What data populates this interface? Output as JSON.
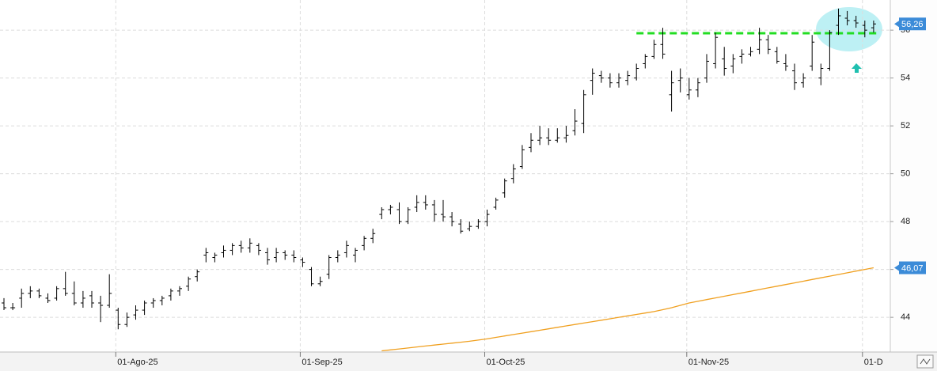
{
  "chart_data": {
    "type": "ohlc",
    "categories": [
      null,
      null,
      null,
      null,
      null,
      null,
      null,
      null,
      null,
      null,
      null,
      null,
      null,
      "01-Ago-25",
      null,
      null,
      null,
      null,
      null,
      null,
      null,
      null,
      null,
      null,
      null,
      null,
      null,
      null,
      null,
      null,
      null,
      null,
      null,
      null,
      "01-Sep-25",
      null,
      null,
      null,
      null,
      null,
      null,
      null,
      null,
      null,
      null,
      null,
      null,
      null,
      null,
      null,
      null,
      null,
      null,
      null,
      null,
      "01-Oct-25",
      null,
      null,
      null,
      null,
      null,
      null,
      null,
      null,
      null,
      null,
      null,
      null,
      null,
      null,
      null,
      null,
      null,
      null,
      null,
      null,
      null,
      null,
      "01-Nov-25",
      null,
      null,
      null,
      null,
      null,
      null,
      null,
      null,
      null,
      null,
      null,
      null,
      null,
      null,
      null,
      null,
      null,
      null,
      null,
      "01-D",
      null
    ],
    "open": [
      44.6,
      44.4,
      44.8,
      45.0,
      45.1,
      44.8,
      44.8,
      45.2,
      45.0,
      44.6,
      44.9,
      44.6,
      44.5,
      44.3,
      43.7,
      44.1,
      44.3,
      44.6,
      44.7,
      44.9,
      45.1,
      45.3,
      45.7,
      46.6,
      46.5,
      46.7,
      46.8,
      47.0,
      46.9,
      47.0,
      46.7,
      46.5,
      46.7,
      46.6,
      46.4,
      46.0,
      45.4,
      45.8,
      46.5,
      46.7,
      46.6,
      47.0,
      47.3,
      48.3,
      48.5,
      48.5,
      48.0,
      48.6,
      48.8,
      48.7,
      48.3,
      48.2,
      47.9,
      47.7,
      47.8,
      48.0,
      48.6,
      49.2,
      49.8,
      50.3,
      51.1,
      51.4,
      51.5,
      51.4,
      51.5,
      51.8,
      52.1,
      53.9,
      54.1,
      54.0,
      53.8,
      53.9,
      54.0,
      54.6,
      54.9,
      55.4,
      53.3,
      53.9,
      53.3,
      53.5,
      54.0,
      54.6,
      54.8,
      54.5,
      54.9,
      55.0,
      55.2,
      55.6,
      55.1,
      54.6,
      54.3,
      53.8,
      54.5,
      54.0,
      54.4,
      56.2,
      56.5,
      56.4,
      56.2,
      56.1
    ],
    "high": [
      44.8,
      44.6,
      45.2,
      45.3,
      45.2,
      45.0,
      45.3,
      45.9,
      45.5,
      45.1,
      45.1,
      44.9,
      45.8,
      44.4,
      44.2,
      44.5,
      44.7,
      44.8,
      44.9,
      45.2,
      45.3,
      45.7,
      46.0,
      46.9,
      46.7,
      47.0,
      47.1,
      47.2,
      47.3,
      47.1,
      46.9,
      46.9,
      46.8,
      46.8,
      46.5,
      46.1,
      45.7,
      46.6,
      46.8,
      47.2,
      46.9,
      47.4,
      47.7,
      48.6,
      48.7,
      48.8,
      48.6,
      49.1,
      49.1,
      48.9,
      48.9,
      48.4,
      48.1,
      48.0,
      48.1,
      48.5,
      49.0,
      49.8,
      50.4,
      51.2,
      51.7,
      52.0,
      51.9,
      51.9,
      52.0,
      52.7,
      53.5,
      54.4,
      54.3,
      54.2,
      54.2,
      54.3,
      54.6,
      55.0,
      55.6,
      56.1,
      54.3,
      54.4,
      54.0,
      54.0,
      55.0,
      55.9,
      55.3,
      55.0,
      55.2,
      55.3,
      56.1,
      55.8,
      55.3,
      55.0,
      54.6,
      54.2,
      55.8,
      54.6,
      56.0,
      56.9,
      56.8,
      56.6,
      56.4,
      56.4
    ],
    "low": [
      44.3,
      44.3,
      44.4,
      44.8,
      44.8,
      44.6,
      44.7,
      44.9,
      44.5,
      44.4,
      44.4,
      43.8,
      44.4,
      43.5,
      43.6,
      43.9,
      44.1,
      44.4,
      44.5,
      44.7,
      44.9,
      45.1,
      45.5,
      46.3,
      46.3,
      46.5,
      46.6,
      46.7,
      46.7,
      46.6,
      46.2,
      46.3,
      46.4,
      46.3,
      46.1,
      45.3,
      45.3,
      45.6,
      46.3,
      46.5,
      46.3,
      46.8,
      47.1,
      48.1,
      48.3,
      47.9,
      47.9,
      48.4,
      48.5,
      48.0,
      48.0,
      47.8,
      47.5,
      47.6,
      47.7,
      47.8,
      48.5,
      49.0,
      49.6,
      50.2,
      50.9,
      51.2,
      51.2,
      51.3,
      51.3,
      51.6,
      51.7,
      53.3,
      53.8,
      53.6,
      53.6,
      53.7,
      53.9,
      54.4,
      54.8,
      54.8,
      52.6,
      53.4,
      53.1,
      53.2,
      53.8,
      54.4,
      54.1,
      54.2,
      54.6,
      54.9,
      55.0,
      55.0,
      54.6,
      54.3,
      53.5,
      53.6,
      54.3,
      53.7,
      54.3,
      55.8,
      56.2,
      56.1,
      55.7,
      55.9
    ],
    "close": [
      44.4,
      44.4,
      45.0,
      45.1,
      44.9,
      44.7,
      45.2,
      45.0,
      44.6,
      44.8,
      44.6,
      44.5,
      45.0,
      43.7,
      44.0,
      44.3,
      44.6,
      44.7,
      44.8,
      45.1,
      45.2,
      45.6,
      45.9,
      46.7,
      46.6,
      46.8,
      47.0,
      46.9,
      47.1,
      46.8,
      46.4,
      46.7,
      46.6,
      46.5,
      46.3,
      45.4,
      45.5,
      46.5,
      46.6,
      47.0,
      46.8,
      47.3,
      47.5,
      48.5,
      48.6,
      48.0,
      48.5,
      48.8,
      48.7,
      48.3,
      48.2,
      48.0,
      47.6,
      47.8,
      48.0,
      48.3,
      48.9,
      49.7,
      50.2,
      51.0,
      51.4,
      51.5,
      51.4,
      51.5,
      51.6,
      52.2,
      53.3,
      54.2,
      54.0,
      53.8,
      54.0,
      54.1,
      54.4,
      54.9,
      55.4,
      55.0,
      53.8,
      54.0,
      53.5,
      53.8,
      54.7,
      55.7,
      54.4,
      54.8,
      55.0,
      55.1,
      55.6,
      55.2,
      54.7,
      54.5,
      53.8,
      54.0,
      55.5,
      54.4,
      55.9,
      56.6,
      56.4,
      56.3,
      56.0,
      56.26
    ],
    "color": "#000000",
    "moving_average": {
      "color": "#f0a020",
      "values": [
        null,
        null,
        null,
        null,
        null,
        null,
        null,
        null,
        null,
        null,
        null,
        null,
        null,
        null,
        null,
        null,
        null,
        null,
        null,
        null,
        null,
        null,
        null,
        null,
        null,
        null,
        null,
        null,
        null,
        null,
        null,
        null,
        null,
        null,
        null,
        null,
        null,
        null,
        null,
        null,
        null,
        null,
        null,
        42.6,
        42.64,
        42.68,
        42.72,
        42.76,
        42.8,
        42.84,
        42.88,
        42.92,
        42.96,
        43.0,
        43.05,
        43.1,
        43.16,
        43.22,
        43.28,
        43.34,
        43.4,
        43.46,
        43.52,
        43.58,
        43.64,
        43.7,
        43.76,
        43.82,
        43.88,
        43.94,
        44.0,
        44.06,
        44.12,
        44.18,
        44.24,
        44.32,
        44.4,
        44.5,
        44.6,
        44.67,
        44.74,
        44.81,
        44.88,
        44.95,
        45.02,
        45.09,
        45.16,
        45.23,
        45.3,
        45.37,
        45.44,
        45.51,
        45.58,
        45.65,
        45.72,
        45.79,
        45.86,
        45.93,
        46.0,
        46.07
      ]
    },
    "resistance": {
      "value": 55.87,
      "color": "#22dd22"
    },
    "price_tags": [
      {
        "value": 56.26,
        "label": "56,26"
      },
      {
        "value": 46.07,
        "label": "46,07"
      }
    ],
    "tag_color": "#3b8bd8",
    "ylim": [
      42.55,
      57.26
    ],
    "yticks": [
      44,
      46,
      48,
      50,
      52,
      54,
      56
    ],
    "grid": true
  }
}
